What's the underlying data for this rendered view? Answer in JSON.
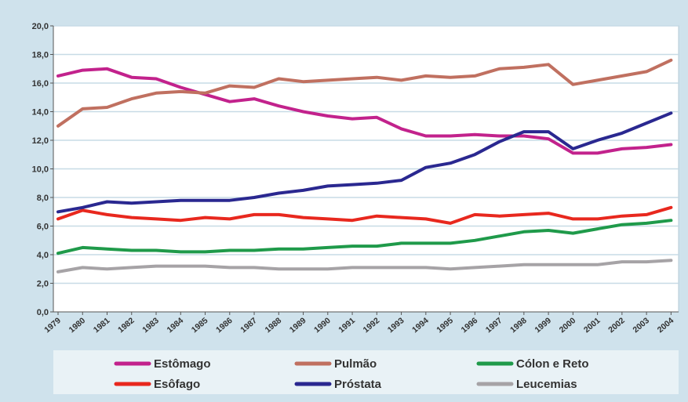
{
  "chart_data": {
    "type": "line",
    "title": "",
    "xlabel": "",
    "ylabel": "",
    "x": [
      "1979",
      "1980",
      "1981",
      "1982",
      "1983",
      "1984",
      "1985",
      "1986",
      "1987",
      "1988",
      "1989",
      "1990",
      "1991",
      "1992",
      "1993",
      "1994",
      "1995",
      "1996",
      "1997",
      "1998",
      "1999",
      "2000",
      "2001",
      "2002",
      "2003",
      "2004"
    ],
    "ylim": [
      0,
      20
    ],
    "yticks": [
      "0,0",
      "2,0",
      "4,0",
      "6,0",
      "8,0",
      "10,0",
      "12,0",
      "14,0",
      "16,0",
      "18,0",
      "20,0"
    ],
    "grid": true,
    "legend_position": "bottom",
    "series": [
      {
        "name": "Estômago",
        "color": "#c2228c",
        "values": [
          16.5,
          16.9,
          17.0,
          16.4,
          16.3,
          15.7,
          15.2,
          14.7,
          14.9,
          14.4,
          14.0,
          13.7,
          13.5,
          13.6,
          12.8,
          12.3,
          12.3,
          12.4,
          12.3,
          12.3,
          12.1,
          11.1,
          11.1,
          11.4,
          11.5,
          11.7
        ]
      },
      {
        "name": "Pulmão",
        "color": "#c07060",
        "values": [
          13.0,
          14.2,
          14.3,
          14.9,
          15.3,
          15.4,
          15.3,
          15.8,
          15.7,
          16.3,
          16.1,
          16.2,
          16.3,
          16.4,
          16.2,
          16.5,
          16.4,
          16.5,
          17.0,
          17.1,
          17.3,
          15.9,
          16.2,
          16.5,
          16.8,
          17.6
        ]
      },
      {
        "name": "Cólon e Reto",
        "color": "#1f9a4a",
        "values": [
          4.1,
          4.5,
          4.4,
          4.3,
          4.3,
          4.2,
          4.2,
          4.3,
          4.3,
          4.4,
          4.4,
          4.5,
          4.6,
          4.6,
          4.8,
          4.8,
          4.8,
          5.0,
          5.3,
          5.6,
          5.7,
          5.5,
          5.8,
          6.1,
          6.2,
          6.4
        ]
      },
      {
        "name": "Esôfago",
        "color": "#e8281e",
        "values": [
          6.5,
          7.1,
          6.8,
          6.6,
          6.5,
          6.4,
          6.6,
          6.5,
          6.8,
          6.8,
          6.6,
          6.5,
          6.4,
          6.7,
          6.6,
          6.5,
          6.2,
          6.8,
          6.7,
          6.8,
          6.9,
          6.5,
          6.5,
          6.7,
          6.8,
          7.3
        ]
      },
      {
        "name": "Próstata",
        "color": "#2a2890",
        "values": [
          7.0,
          7.3,
          7.7,
          7.6,
          7.7,
          7.8,
          7.8,
          7.8,
          8.0,
          8.3,
          8.5,
          8.8,
          8.9,
          9.0,
          9.2,
          10.1,
          10.4,
          11.0,
          11.9,
          12.6,
          12.6,
          11.4,
          12.0,
          12.5,
          13.2,
          13.9
        ]
      },
      {
        "name": "Leucemias",
        "color": "#a6a3a6",
        "values": [
          2.8,
          3.1,
          3.0,
          3.1,
          3.2,
          3.2,
          3.2,
          3.1,
          3.1,
          3.0,
          3.0,
          3.0,
          3.1,
          3.1,
          3.1,
          3.1,
          3.0,
          3.1,
          3.2,
          3.3,
          3.3,
          3.3,
          3.3,
          3.5,
          3.5,
          3.6
        ]
      }
    ],
    "legend_order": [
      "Estômago",
      "Pulmão",
      "Cólon e Reto",
      "Esôfago",
      "Próstata",
      "Leucemias"
    ]
  }
}
